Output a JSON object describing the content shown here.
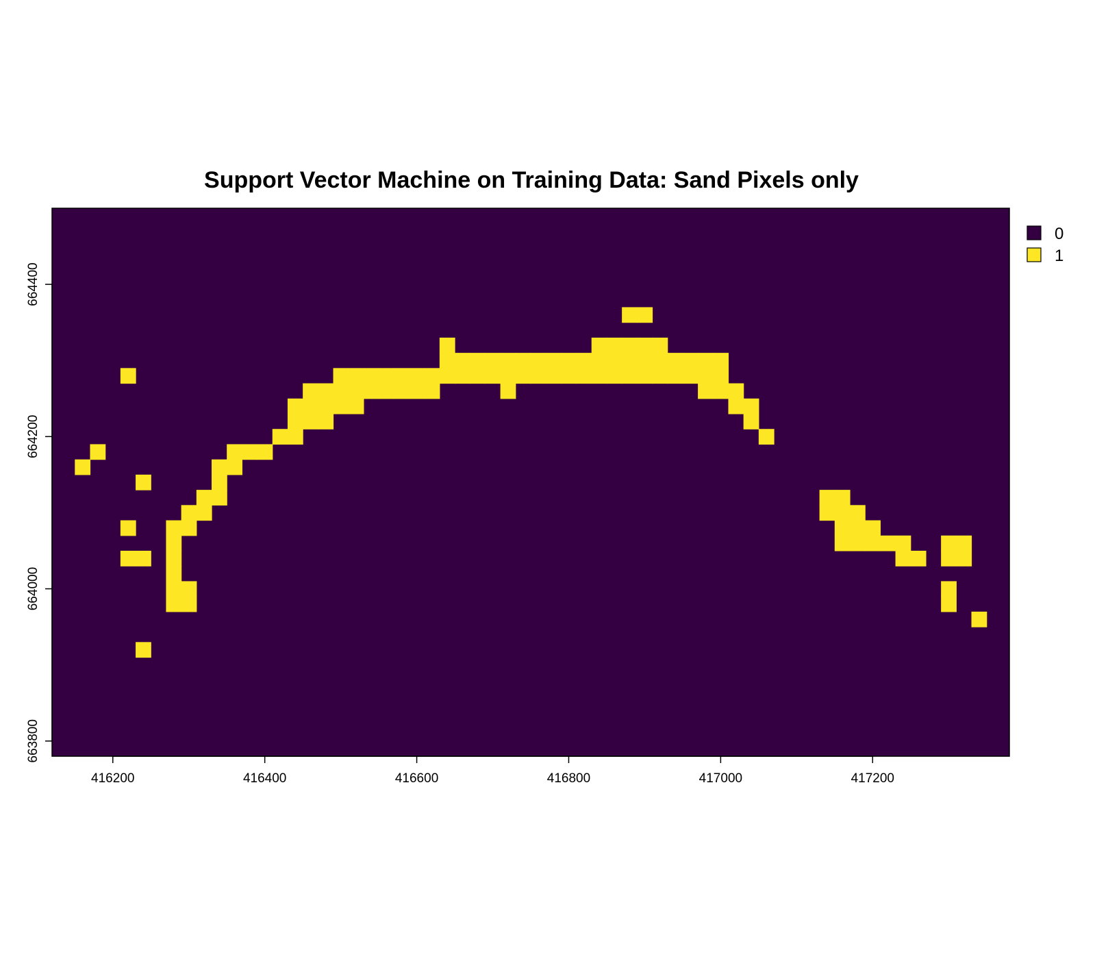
{
  "chart_data": {
    "type": "heatmap",
    "title": "Support Vector Machine on Training Data: Sand Pixels only",
    "xlabel": "",
    "ylabel": "",
    "xlim": [
      416120,
      417380
    ],
    "ylim": [
      663780,
      664500
    ],
    "xticks": [
      416200,
      416400,
      416600,
      416800,
      417000,
      417200
    ],
    "yticks": [
      663800,
      664000,
      664200,
      664400
    ],
    "cell_size": 20,
    "grid": false,
    "legend_position": "top-right",
    "classes": [
      {
        "label": "0",
        "color": "#340042"
      },
      {
        "label": "1",
        "color": "#fde725"
      }
    ],
    "background_class": "0",
    "sand_pixels": [
      [
        416880,
        664360
      ],
      [
        416900,
        664360
      ],
      [
        416640,
        664320
      ],
      [
        416840,
        664320
      ],
      [
        416860,
        664320
      ],
      [
        416880,
        664320
      ],
      [
        416900,
        664320
      ],
      [
        416920,
        664320
      ],
      [
        416640,
        664300
      ],
      [
        416660,
        664300
      ],
      [
        416680,
        664300
      ],
      [
        416700,
        664300
      ],
      [
        416720,
        664300
      ],
      [
        416740,
        664300
      ],
      [
        416760,
        664300
      ],
      [
        416780,
        664300
      ],
      [
        416800,
        664300
      ],
      [
        416820,
        664300
      ],
      [
        416840,
        664300
      ],
      [
        416860,
        664300
      ],
      [
        416880,
        664300
      ],
      [
        416900,
        664300
      ],
      [
        416920,
        664300
      ],
      [
        416940,
        664300
      ],
      [
        416960,
        664300
      ],
      [
        416980,
        664300
      ],
      [
        417000,
        664300
      ],
      [
        416220,
        664280
      ],
      [
        416500,
        664280
      ],
      [
        416520,
        664280
      ],
      [
        416540,
        664280
      ],
      [
        416560,
        664280
      ],
      [
        416580,
        664280
      ],
      [
        416600,
        664280
      ],
      [
        416620,
        664280
      ],
      [
        416640,
        664280
      ],
      [
        416660,
        664280
      ],
      [
        416680,
        664280
      ],
      [
        416700,
        664280
      ],
      [
        416720,
        664280
      ],
      [
        416740,
        664280
      ],
      [
        416760,
        664280
      ],
      [
        416780,
        664280
      ],
      [
        416800,
        664280
      ],
      [
        416820,
        664280
      ],
      [
        416840,
        664280
      ],
      [
        416860,
        664280
      ],
      [
        416880,
        664280
      ],
      [
        416900,
        664280
      ],
      [
        416920,
        664280
      ],
      [
        416940,
        664280
      ],
      [
        416960,
        664280
      ],
      [
        416980,
        664280
      ],
      [
        417000,
        664280
      ],
      [
        416460,
        664260
      ],
      [
        416480,
        664260
      ],
      [
        416500,
        664260
      ],
      [
        416520,
        664260
      ],
      [
        416540,
        664260
      ],
      [
        416560,
        664260
      ],
      [
        416580,
        664260
      ],
      [
        416600,
        664260
      ],
      [
        416620,
        664260
      ],
      [
        416720,
        664260
      ],
      [
        416980,
        664260
      ],
      [
        417000,
        664260
      ],
      [
        417020,
        664260
      ],
      [
        416440,
        664240
      ],
      [
        416460,
        664240
      ],
      [
        416480,
        664240
      ],
      [
        416500,
        664240
      ],
      [
        416520,
        664240
      ],
      [
        417020,
        664240
      ],
      [
        417040,
        664240
      ],
      [
        416440,
        664220
      ],
      [
        416460,
        664220
      ],
      [
        416480,
        664220
      ],
      [
        417040,
        664220
      ],
      [
        416420,
        664200
      ],
      [
        416440,
        664200
      ],
      [
        417060,
        664200
      ],
      [
        416180,
        664180
      ],
      [
        416360,
        664180
      ],
      [
        416380,
        664180
      ],
      [
        416400,
        664180
      ],
      [
        416160,
        664160
      ],
      [
        416340,
        664160
      ],
      [
        416360,
        664160
      ],
      [
        416240,
        664140
      ],
      [
        416340,
        664140
      ],
      [
        416320,
        664120
      ],
      [
        416340,
        664120
      ],
      [
        417140,
        664120
      ],
      [
        417160,
        664120
      ],
      [
        416300,
        664100
      ],
      [
        416320,
        664100
      ],
      [
        417140,
        664100
      ],
      [
        417160,
        664100
      ],
      [
        417180,
        664100
      ],
      [
        416220,
        664080
      ],
      [
        416280,
        664080
      ],
      [
        416300,
        664080
      ],
      [
        417160,
        664080
      ],
      [
        417180,
        664080
      ],
      [
        417200,
        664080
      ],
      [
        416280,
        664060
      ],
      [
        417160,
        664060
      ],
      [
        417180,
        664060
      ],
      [
        417200,
        664060
      ],
      [
        417220,
        664060
      ],
      [
        417240,
        664060
      ],
      [
        417300,
        664060
      ],
      [
        417320,
        664060
      ],
      [
        416220,
        664040
      ],
      [
        416240,
        664040
      ],
      [
        416280,
        664040
      ],
      [
        417240,
        664040
      ],
      [
        417260,
        664040
      ],
      [
        417300,
        664040
      ],
      [
        417320,
        664040
      ],
      [
        416280,
        664020
      ],
      [
        416280,
        664000
      ],
      [
        416300,
        664000
      ],
      [
        417300,
        664000
      ],
      [
        416280,
        663980
      ],
      [
        416300,
        663980
      ],
      [
        417300,
        663980
      ],
      [
        417340,
        663960
      ],
      [
        416240,
        663920
      ]
    ]
  }
}
